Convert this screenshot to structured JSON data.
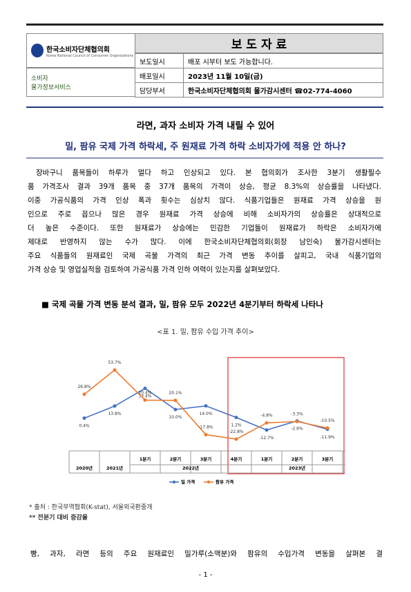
{
  "header": {
    "org_name": "한국소비자단체협의회",
    "org_name_en": "Korea National Council of Consumer Organizations",
    "service_name": [
      "소비자",
      "물가정보서비스"
    ],
    "doc_type": "보 도 자 료",
    "rows": [
      [
        "보도일시",
        "배포 시부터 보도 가능합니다."
      ],
      [
        "배포일시",
        "2023년 11월 10일(금)"
      ],
      [
        "담당부서",
        "한국소비자단체협의회 물가감시센터 ☎02-774-4060"
      ]
    ]
  },
  "title": "라면, 과자 소비자 가격 내릴 수 있어",
  "subtitle": "밀, 팜유 국제 가격 하락세, 주 원재료 가격 하락 소비자가에 적용 안 하나?",
  "paragraph": [
    "장바구니 품목들이 하루가 멀다 하고 인상되고 있다. 본 협의회가 조사한 3분기 생활필수",
    "품 가격조사 결과 39개 품목 중 37개 품목의 가격이 상승, 평균 8.3%의 상승률을 나타냈다.",
    "이중 가공식품의 가격 인상 폭과 횟수는 심상치 않다. 식품기업들은 원재료 가격 상승을 원",
    "인으로 주로 꼽으나 많은 경우 원재료 가격 상승에 비해 소비자가의 상승률은 상대적으로",
    "더 높은 수준이다. 또한 원재료가 상승에는 민감한 기업들이 원재료가 하락은 소비자가에",
    "제대로 반영하지 않는 수가 많다. 이에 한국소비자단체협의회(회장 남인숙) 물가감시센터는",
    "주요 식품들의 원재료인 국제 곡물 가격의 최근 가격 변동 추이를 살피고, 국내 식품기업의",
    "가격 상승 및 영업실적을 검토하여 가공식품 가격 인하 여력이 있는지를 살펴보았다."
  ],
  "section_heading": "■ 국제 곡물 가격 변동 분석 결과, 밀, 팜유 모두 2022년 4분기부터 하락세 나타나",
  "table_caption": "<표 1. 밀, 팜유 수입 가격 추이>",
  "chart": {
    "type": "line",
    "categories": [
      "2020년",
      "2021년",
      "1분기",
      "2분기",
      "3분기",
      "4분기",
      "1분기",
      "2분기",
      "3분기"
    ],
    "x_groups": [
      "2022년",
      "2023년"
    ],
    "series": [
      {
        "name": "밀 가격",
        "color": "#4472c4",
        "values": [
          0.4,
          13.8,
          33.4,
          10.0,
          14.0,
          1.2,
          -12.7,
          -2.6,
          -11.9
        ],
        "value_labels": [
          "0.4%",
          "13.8%",
          "33.4%",
          "10.0%",
          "14.0%",
          "1.2%",
          "-12.7%",
          "-2.6%",
          "-11.9%"
        ]
      },
      {
        "name": "팜유 가격",
        "color": "#ed7d31",
        "values": [
          26.8,
          53.7,
          20.4,
          20.1,
          -17.8,
          -22.8,
          -4.8,
          -3.3,
          -10.5
        ],
        "value_labels": [
          "26.8%",
          "53.7%",
          "20.4%",
          "20.1%",
          "-17.8%",
          "-22.8%",
          "-4.8%",
          "-3.3%",
          "-10.5%"
        ]
      }
    ]
  },
  "notes": [
    "* 출처 : 한국무역협회(K-stat), 서울외국환중개",
    "** 전분기 대비 증감율"
  ],
  "body_continued": "빵, 과자, 라면 등의 주요 원재료인 밀가루(소맥분)와 팜유의 수입가격 변동을 살펴본 결",
  "page_number": "- 1 -"
}
